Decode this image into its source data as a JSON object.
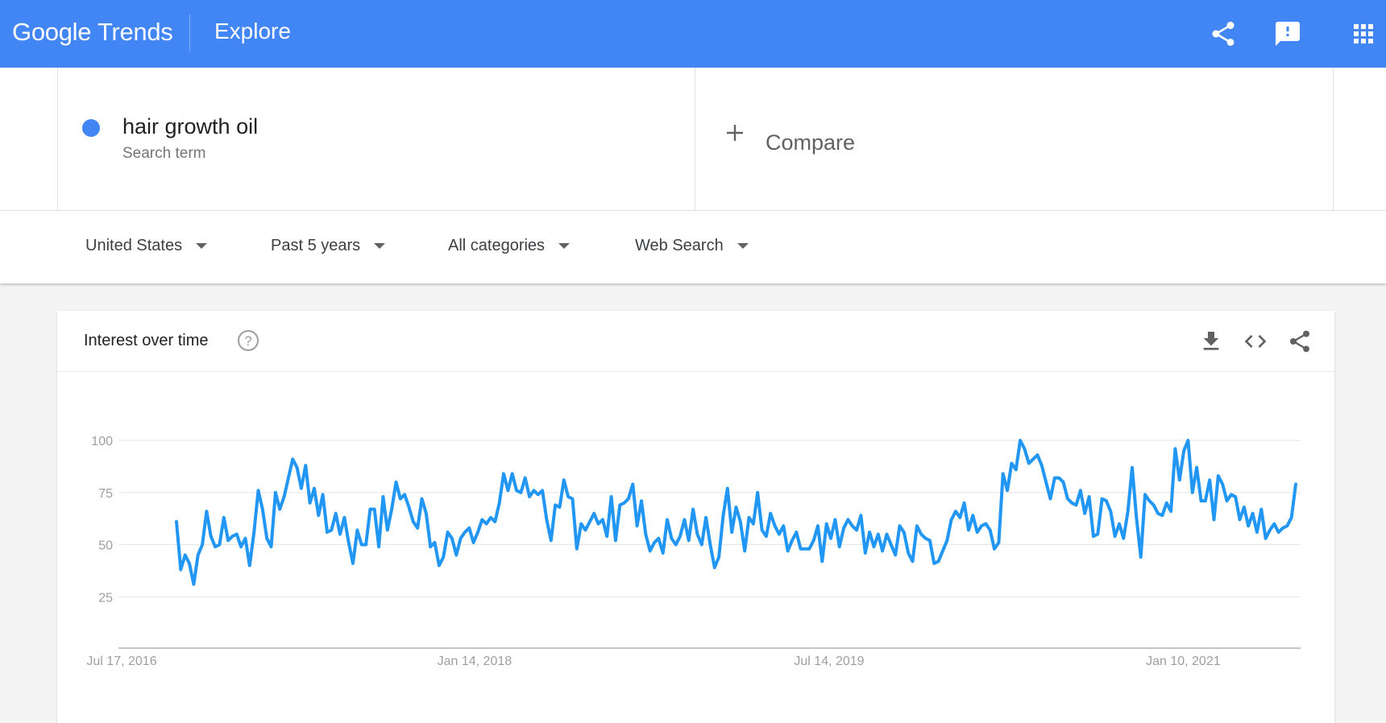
{
  "header": {
    "logo_google": "Google",
    "logo_trends": "Trends",
    "section_title": "Explore",
    "icons": [
      "share-icon",
      "feedback-icon",
      "apps-grid-icon"
    ]
  },
  "search": {
    "term": "hair growth oil",
    "term_type": "Search term",
    "term_color": "#4285f4",
    "compare_label": "Compare"
  },
  "filters": {
    "region": "United States",
    "time_range": "Past 5 years",
    "category": "All categories",
    "search_type": "Web Search"
  },
  "card": {
    "title": "Interest over time",
    "icons": [
      "help-icon",
      "download-icon",
      "embed-code-icon",
      "share-icon"
    ]
  },
  "chart_data": {
    "type": "line",
    "x_tick_labels": [
      "Jul 17, 2016",
      "Jan 14, 2018",
      "Jul 14, 2019",
      "Jan 10, 2021"
    ],
    "y_ticks": [
      25,
      50,
      75,
      100
    ],
    "ylim": [
      0,
      100
    ],
    "grid": true,
    "series": [
      {
        "color": "#2196f3",
        "values": [
          61,
          38,
          45,
          41,
          31,
          45,
          50,
          66,
          54,
          49,
          50,
          63,
          52,
          54,
          55,
          49,
          53,
          40,
          56,
          76,
          67,
          53,
          49,
          75,
          67,
          73,
          82,
          91,
          87,
          77,
          88,
          70,
          77,
          64,
          74,
          56,
          57,
          65,
          55,
          63,
          51,
          41,
          57,
          50,
          50,
          67,
          67,
          49,
          73,
          57,
          67,
          80,
          72,
          74,
          68,
          61,
          58,
          72,
          65,
          49,
          51,
          40,
          44,
          56,
          53,
          45,
          53,
          56,
          58,
          51,
          56,
          62,
          60,
          63,
          61,
          70,
          84,
          76,
          84,
          76,
          75,
          82,
          73,
          76,
          74,
          76,
          62,
          52,
          69,
          68,
          81,
          73,
          72,
          48,
          60,
          57,
          61,
          65,
          60,
          62,
          54,
          73,
          52,
          69,
          70,
          72,
          79,
          59,
          71,
          55,
          47,
          51,
          53,
          46,
          62,
          53,
          50,
          54,
          62,
          52,
          67,
          55,
          50,
          63,
          50,
          39,
          44,
          64,
          77,
          56,
          68,
          61,
          47,
          63,
          60,
          75,
          57,
          54,
          65,
          59,
          55,
          59,
          47,
          52,
          56,
          48,
          48,
          48,
          52,
          59,
          42,
          60,
          53,
          62,
          49,
          58,
          62,
          59,
          57,
          64,
          46,
          56,
          49,
          55,
          47,
          55,
          50,
          45,
          59,
          56,
          46,
          42,
          59,
          55,
          53,
          52,
          41,
          42,
          47,
          52,
          62,
          66,
          63,
          70,
          57,
          64,
          56,
          59,
          60,
          57,
          48,
          51,
          84,
          76,
          89,
          86,
          100,
          96,
          89,
          91,
          93,
          88,
          80,
          72,
          82,
          82,
          80,
          72,
          70,
          69,
          76,
          65,
          73,
          54,
          55,
          72,
          71,
          66,
          54,
          60,
          53,
          66,
          87,
          63,
          44,
          74,
          71,
          69,
          65,
          64,
          70,
          66,
          96,
          81,
          95,
          100,
          75,
          87,
          71,
          71,
          81,
          62,
          83,
          79,
          71,
          74,
          73,
          62,
          68,
          59,
          65,
          56,
          67,
          53,
          57,
          60,
          56,
          58,
          59,
          63,
          79
        ]
      }
    ]
  }
}
